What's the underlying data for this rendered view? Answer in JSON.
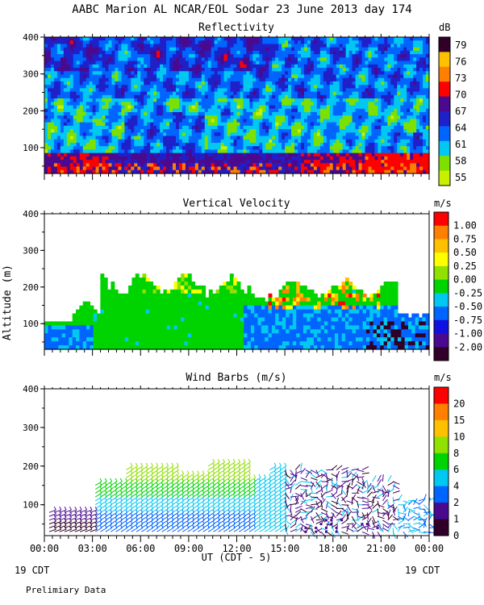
{
  "header": {
    "title": "AABC Marion AL NCAR/EOL Sodar  23 June 2013 day 174"
  },
  "footer": {
    "xlabel": "UT  (CDT - 5)",
    "left_date": "19 CDT",
    "right_date": "19 CDT",
    "note": "Prelimiary Data"
  },
  "colors": {
    "refl_scale": [
      "#c8f000",
      "#7ee000",
      "#00c8f0",
      "#0064ff",
      "#2020c8",
      "#4a0a90",
      "#ff0000",
      "#ff8000",
      "#ffc000",
      "#300028"
    ],
    "vv_scale": [
      "#300028",
      "#4a0a90",
      "#1010e0",
      "#0064ff",
      "#00c8f0",
      "#00d400",
      "#90e000",
      "#ffff00",
      "#ffc000",
      "#ff8000",
      "#ff0000"
    ],
    "wind_scale": [
      "#300028",
      "#4a0a90",
      "#0064ff",
      "#00c8f0",
      "#00d400",
      "#90e000",
      "#ffc000",
      "#ff8000",
      "#ff0000"
    ]
  },
  "chart_data": [
    {
      "type": "heatmap",
      "title": "Reflectivity",
      "colorbar_unit": "dB",
      "colorbar_ticks": [
        "79",
        "76",
        "73",
        "70",
        "67",
        "64",
        "61",
        "58",
        "55"
      ],
      "ylim": [
        30,
        400
      ],
      "yticks": [
        "100",
        "200",
        "300",
        "400"
      ],
      "xlim_hours": [
        0,
        24
      ]
    },
    {
      "type": "heatmap",
      "title": "Vertical Velocity",
      "ylabel": "Altitude (m)",
      "colorbar_unit": "m/s",
      "colorbar_ticks": [
        "1.00",
        "0.75",
        "0.50",
        "0.25",
        "0.00",
        "-0.25",
        "-0.50",
        "-0.75",
        "-1.00",
        "-2.00"
      ],
      "ylim": [
        30,
        400
      ],
      "yticks": [
        "100",
        "200",
        "300",
        "400"
      ],
      "xlim_hours": [
        0,
        24
      ]
    },
    {
      "type": "scatter",
      "title": "Wind Barbs (m/s)",
      "colorbar_unit": "m/s",
      "colorbar_ticks": [
        "20",
        "15",
        "10",
        "8",
        "6",
        "4",
        "2",
        "1",
        "0"
      ],
      "ylim": [
        20,
        400
      ],
      "yticks": [
        "100",
        "200",
        "300",
        "400"
      ],
      "xlim_hours": [
        0,
        24
      ],
      "xticks": [
        "00:00",
        "03:00",
        "06:00",
        "09:00",
        "12:00",
        "15:00",
        "18:00",
        "21:00",
        "00:00"
      ]
    }
  ]
}
